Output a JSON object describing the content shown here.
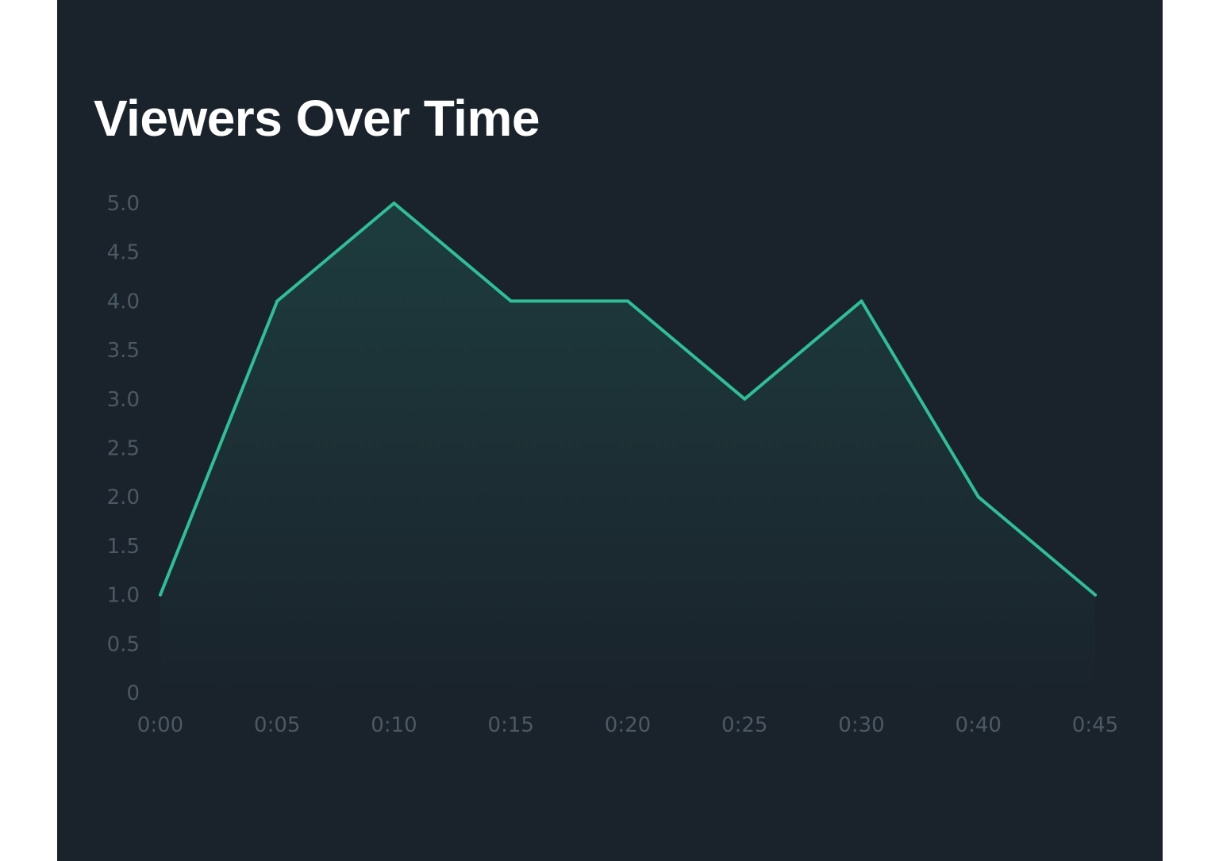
{
  "title": "Viewers Over Time",
  "colors": {
    "background": "#1a232c",
    "line": "#2fbf96",
    "tick_text": "#4c5863"
  },
  "chart_data": {
    "type": "area",
    "title": "Viewers Over Time",
    "xlabel": "",
    "ylabel": "",
    "x": [
      "0:00",
      "0:05",
      "0:10",
      "0:15",
      "0:20",
      "0:25",
      "0:30",
      "0:40",
      "0:45"
    ],
    "series": [
      {
        "values": [
          1,
          4,
          5,
          4,
          4,
          3,
          4,
          2,
          1
        ]
      }
    ],
    "ylim": [
      0,
      5
    ],
    "yticks": [
      "0",
      "0.5",
      "1.0",
      "1.5",
      "2.0",
      "2.5",
      "3.0",
      "3.5",
      "4.0",
      "4.5",
      "5.0"
    ],
    "grid": false,
    "legend": "none"
  }
}
